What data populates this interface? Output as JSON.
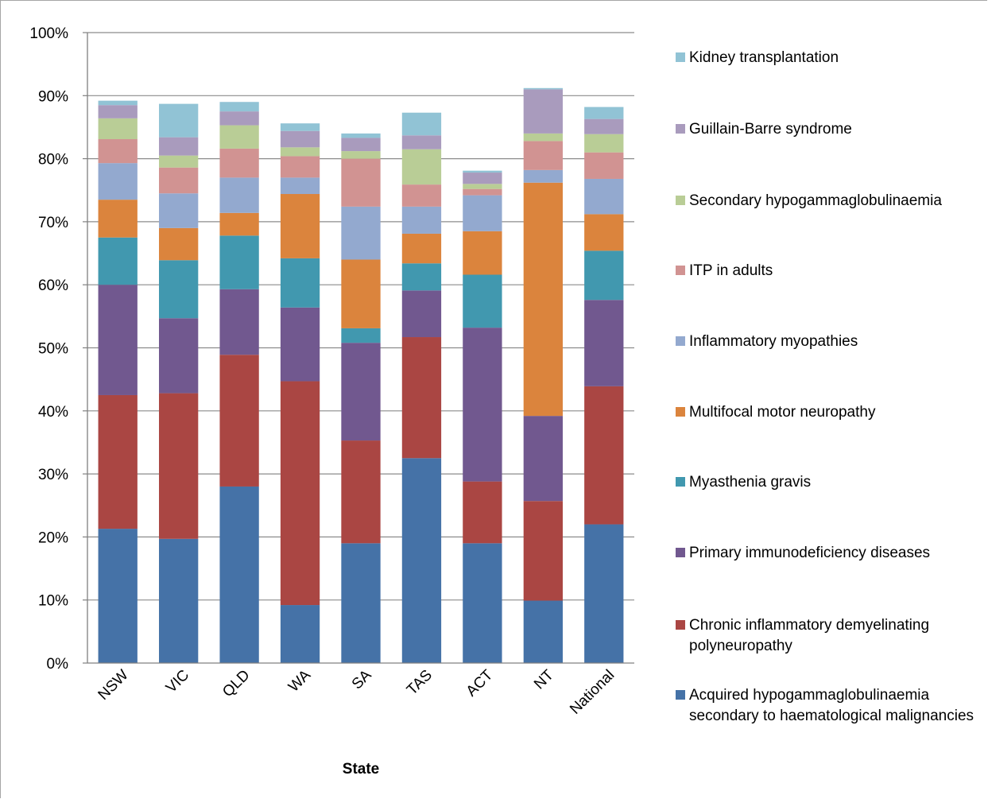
{
  "chart_data": {
    "type": "bar",
    "stacked": true,
    "xlabel": "State",
    "ylabel": "",
    "ylim": [
      0,
      100
    ],
    "yticks": [
      "0%",
      "10%",
      "20%",
      "30%",
      "40%",
      "50%",
      "60%",
      "70%",
      "80%",
      "90%",
      "100%"
    ],
    "grid": true,
    "legend_position": "right",
    "categories": [
      "NSW",
      "VIC",
      "QLD",
      "WA",
      "SA",
      "TAS",
      "ACT",
      "NT",
      "National"
    ],
    "series": [
      {
        "name": "Acquired hypogammaglobulinaemia secondary to haematological malignancies",
        "color": "#4572a7",
        "values": [
          21.3,
          19.7,
          28.0,
          9.2,
          19.0,
          32.5,
          19.0,
          9.9,
          22.0
        ]
      },
      {
        "name": "Chronic inflammatory demyelinating polyneuropathy",
        "color": "#aa4643",
        "values": [
          21.2,
          23.1,
          20.9,
          35.5,
          16.3,
          19.2,
          9.8,
          15.8,
          21.9
        ]
      },
      {
        "name": "Primary immunodeficiency diseases",
        "color": "#71588f",
        "values": [
          17.5,
          11.9,
          10.4,
          11.7,
          15.5,
          7.4,
          24.4,
          13.5,
          13.7
        ]
      },
      {
        "name": "Myasthenia gravis",
        "color": "#4198af",
        "values": [
          7.5,
          9.2,
          8.5,
          7.8,
          2.3,
          4.3,
          8.4,
          0,
          7.8
        ]
      },
      {
        "name": "Multifocal motor neuropathy",
        "color": "#db843d",
        "values": [
          6.0,
          5.1,
          3.6,
          10.2,
          10.9,
          4.7,
          6.9,
          37.0,
          5.8
        ]
      },
      {
        "name": "Inflammatory myopathies",
        "color": "#93a9cf",
        "values": [
          5.8,
          5.5,
          5.6,
          2.6,
          8.4,
          4.3,
          5.7,
          2.0,
          5.6
        ]
      },
      {
        "name": "ITP in adults",
        "color": "#d19392",
        "values": [
          3.8,
          4.1,
          4.6,
          3.4,
          7.6,
          3.5,
          1.0,
          4.6,
          4.2
        ]
      },
      {
        "name": "Secondary hypogammaglobulinaemia",
        "color": "#b9cd96",
        "values": [
          3.3,
          1.9,
          3.7,
          1.4,
          1.2,
          5.6,
          0.8,
          1.2,
          2.9
        ]
      },
      {
        "name": "Guillain-Barre syndrome",
        "color": "#a99bbd",
        "values": [
          2.1,
          2.9,
          2.2,
          2.6,
          2.1,
          2.2,
          1.8,
          7.0,
          2.4
        ]
      },
      {
        "name": "Kidney transplantation",
        "color": "#91c3d5",
        "values": [
          0.7,
          5.3,
          1.5,
          1.2,
          0.7,
          3.6,
          0.3,
          0.2,
          1.9
        ]
      }
    ]
  }
}
